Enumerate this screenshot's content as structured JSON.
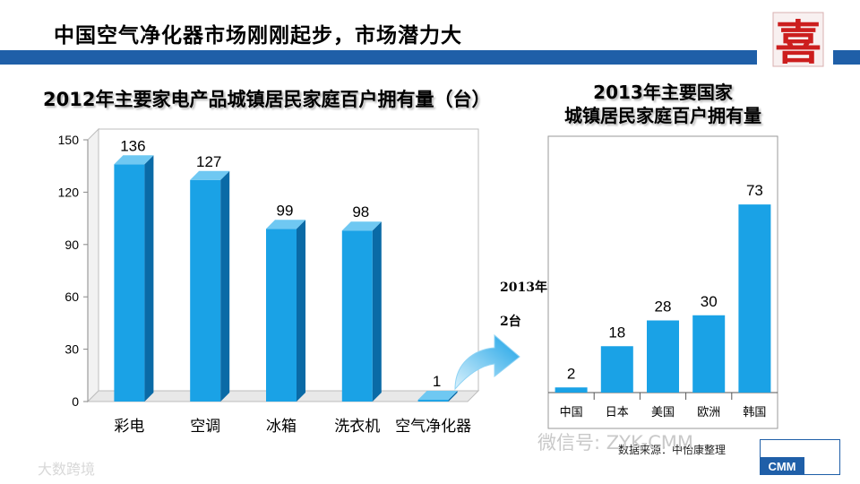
{
  "page": {
    "title": "中国空气净化器市场刚刚起步，市场潜力大",
    "logo_char": "喜"
  },
  "left_chart": {
    "title": "2012年主要家电产品城镇居民家庭百户拥有量（台）"
  },
  "right_chart": {
    "title_line1": "2013年主要国家",
    "title_line2": "城镇居民家庭百户拥有量"
  },
  "callout": {
    "line1": "2013年",
    "line2": "2台"
  },
  "source_note": "数据来源：中怡康整理",
  "watermarks": {
    "wechat": "微信号: ZYK-CMM",
    "bottom_left": "大数跨境",
    "badge": "CMM"
  },
  "colors": {
    "bar": "#1aa2e6",
    "bar_side": "#0a6aa6",
    "bar_top": "#6fc8f2",
    "title_bar": "#1f5fa8",
    "logo_red": "#cc1e1e"
  },
  "chart_data": [
    {
      "type": "bar",
      "title": "2012年主要家电产品城镇居民家庭百户拥有量（台）",
      "categories": [
        "彩电",
        "空调",
        "冰箱",
        "洗衣机",
        "空气净化器"
      ],
      "values": [
        136,
        127,
        99,
        98,
        1
      ],
      "ylim": [
        0,
        150
      ],
      "yticks": [
        0,
        30,
        60,
        90,
        120,
        150
      ],
      "grid": false,
      "three_d": true
    },
    {
      "type": "bar",
      "title": "2013年主要国家城镇居民家庭百户拥有量",
      "categories": [
        "中国",
        "日本",
        "美国",
        "欧洲",
        "韩国"
      ],
      "values": [
        2,
        18,
        28,
        30,
        73
      ],
      "ylim": [
        0,
        80
      ],
      "axis_visible": false
    }
  ]
}
